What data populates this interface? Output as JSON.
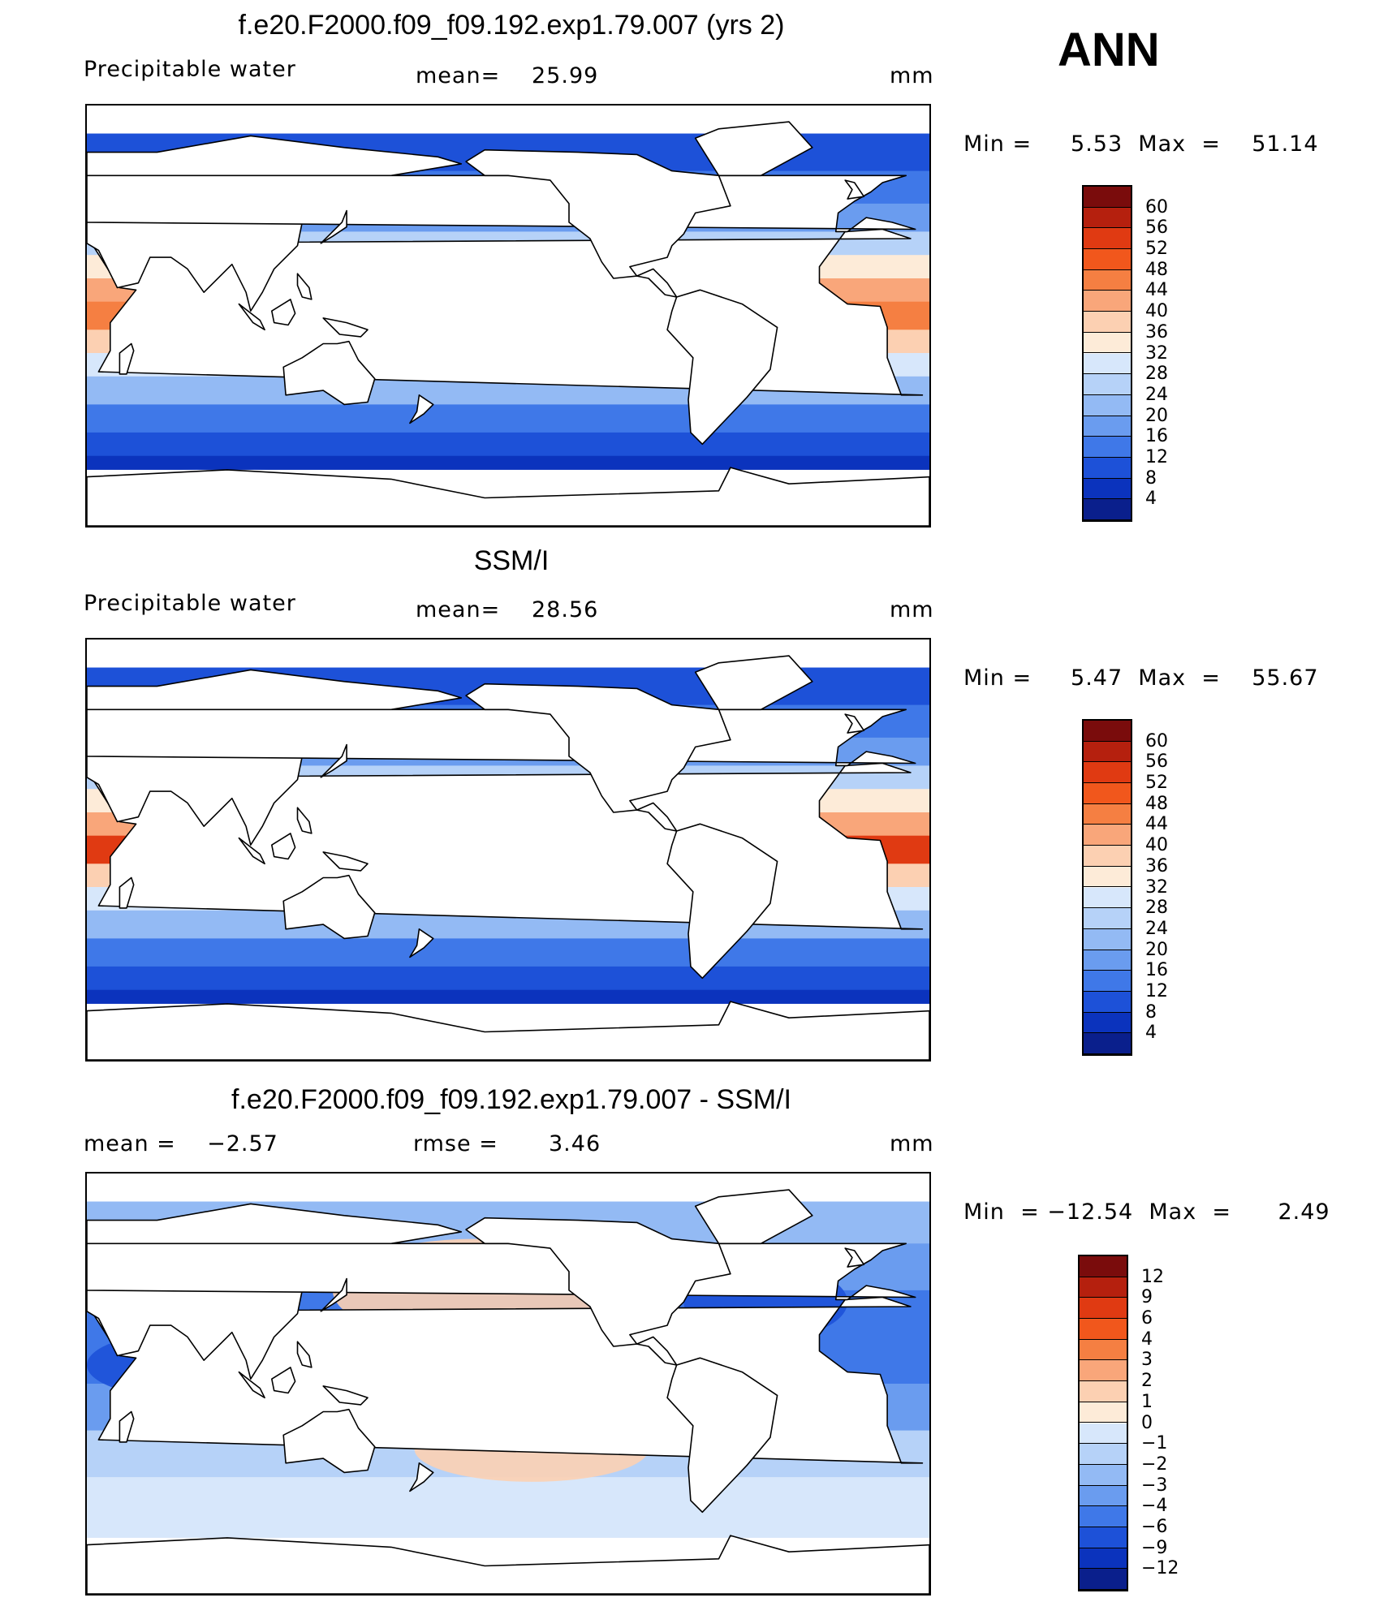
{
  "season": "ANN",
  "chart_data": [
    {
      "type": "heatmap",
      "title": "f.e20.F2000.f09_f09.192.exp1.79.007 (yrs 2)",
      "variable": "Precipitable water",
      "stat_left": "",
      "stat_mid_label": "mean=",
      "stat_mid_value": "25.99",
      "units": "mm",
      "minmax_text": "Min =     5.53  Max  =    51.14",
      "min": 5.53,
      "max": 51.14,
      "levels": [
        "60",
        "56",
        "52",
        "48",
        "44",
        "40",
        "36",
        "32",
        "28",
        "24",
        "20",
        "16",
        "12",
        "8",
        "4"
      ],
      "colors": [
        "#7a0c0c",
        "#b5200e",
        "#e03a12",
        "#f1571c",
        "#f57f42",
        "#f9a67a",
        "#fcd0b2",
        "#fdebd8",
        "#d7e7fb",
        "#b6d2f8",
        "#93baf4",
        "#6a9cef",
        "#3f78e8",
        "#1d51d8",
        "#0b33bd",
        "#0a1f8c"
      ],
      "pattern": "model"
    },
    {
      "type": "heatmap",
      "title": "SSM/I",
      "variable": "Precipitable water",
      "stat_left": "",
      "stat_mid_label": "mean=",
      "stat_mid_value": "28.56",
      "units": "mm",
      "minmax_text": "Min =     5.47  Max  =    55.67",
      "min": 5.47,
      "max": 55.67,
      "levels": [
        "60",
        "56",
        "52",
        "48",
        "44",
        "40",
        "36",
        "32",
        "28",
        "24",
        "20",
        "16",
        "12",
        "8",
        "4"
      ],
      "colors": [
        "#7a0c0c",
        "#b5200e",
        "#e03a12",
        "#f1571c",
        "#f57f42",
        "#f9a67a",
        "#fcd0b2",
        "#fdebd8",
        "#d7e7fb",
        "#b6d2f8",
        "#93baf4",
        "#6a9cef",
        "#3f78e8",
        "#1d51d8",
        "#0b33bd",
        "#0a1f8c"
      ],
      "pattern": "obs"
    },
    {
      "type": "heatmap",
      "title": "f.e20.F2000.f09_f09.192.exp1.79.007 - SSM/I",
      "variable": "",
      "stat_left": "mean =    −2.57",
      "stat_mid_label": "rmse =",
      "stat_mid_value": "3.46",
      "units": "mm",
      "minmax_text": "Min  = −12.54  Max  =      2.49",
      "min": -12.54,
      "max": 2.49,
      "levels": [
        "12",
        "9",
        "6",
        "4",
        "3",
        "2",
        "1",
        "0",
        "−1",
        "−2",
        "−3",
        "−4",
        "−6",
        "−9",
        "−12"
      ],
      "colors": [
        "#7a0c0c",
        "#b5200e",
        "#e03a12",
        "#f1571c",
        "#f57f42",
        "#f9a67a",
        "#fcd0b2",
        "#fdebd8",
        "#d7e7fb",
        "#b6d2f8",
        "#93baf4",
        "#6a9cef",
        "#3f78e8",
        "#1d51d8",
        "#0b33bd",
        "#0a1f8c"
      ],
      "pattern": "diff"
    }
  ]
}
